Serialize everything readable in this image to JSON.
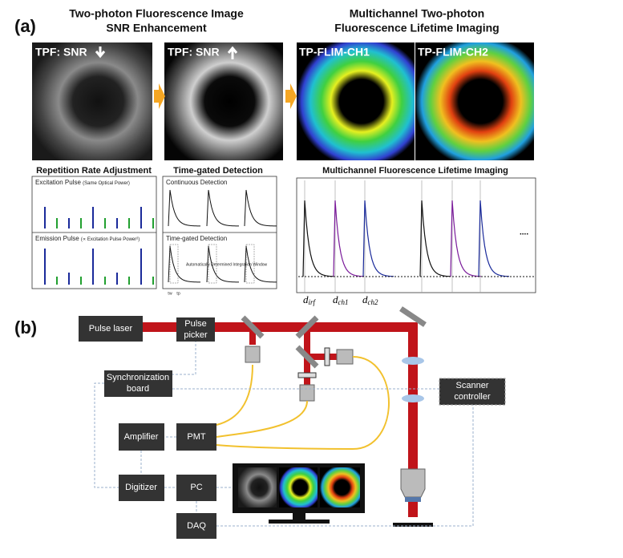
{
  "panel_a": {
    "label": "(a)",
    "left_title": [
      "Two-photon Fluorescence Image",
      "SNR Enhancement"
    ],
    "right_title": [
      "Multichannel Two-photon",
      "Fluorescence Lifetime Imaging"
    ],
    "images": [
      {
        "label": "TPF: SNR"
      },
      {
        "label": "TPF: SNR"
      },
      {
        "label": "TP-FLIM-CH1"
      },
      {
        "label": "TP-FLIM-CH2"
      }
    ],
    "plots": {
      "repetition": {
        "title": "Repetition Rate Adjustment",
        "top": "Excitation Pulse",
        "top_note": "(Same Optical  Power)",
        "bottom": "Emission Pulse",
        "bottom_note": "(∝ Excitation Pulse Power²)"
      },
      "gated": {
        "title": "Time-gated Detection",
        "top": "Continuous Detection",
        "bottom": "Time-gated Detection",
        "note": "Automatically Determined Integration Window",
        "x_marks": [
          "τw",
          "τp"
        ]
      },
      "multichannel": {
        "title": "Multichannel Fluorescence Lifetime Imaging",
        "ellipsis": "....",
        "delays": [
          {
            "main": "d",
            "sub": "irf"
          },
          {
            "main": "d",
            "sub": "ch1"
          },
          {
            "main": "d",
            "sub": "ch2"
          }
        ]
      }
    }
  },
  "panel_b": {
    "label": "(b)",
    "boxes": {
      "laser": "Pulse laser",
      "picker": [
        "Pulse",
        "picker"
      ],
      "sync": [
        "Synchronization",
        "board"
      ],
      "amplifier": "Amplifier",
      "pmt": "PMT",
      "digitizer": "Digitizer",
      "pc": "PC",
      "daq": "DAQ",
      "scanner": [
        "Scanner",
        "controller"
      ]
    }
  }
}
